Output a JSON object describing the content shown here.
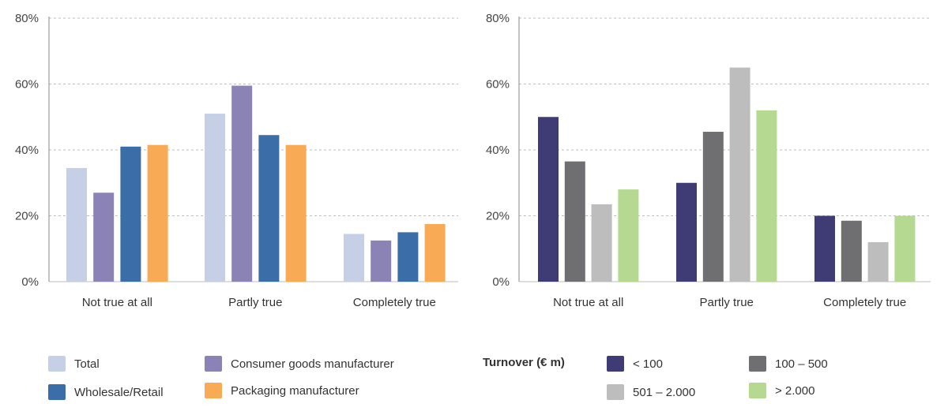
{
  "chart_data": [
    {
      "type": "bar",
      "categories": [
        "Not true at all",
        "Partly true",
        "Completely true"
      ],
      "ylim": [
        0,
        80
      ],
      "yticks": [
        "0%",
        "20%",
        "40%",
        "60%",
        "80%"
      ],
      "ytick_values": [
        0,
        20,
        40,
        60,
        80
      ],
      "grid": true,
      "legend_position": "bottom",
      "series": [
        {
          "name": "Total",
          "color": "#c5d0e7",
          "values": [
            34.5,
            51,
            14.5
          ]
        },
        {
          "name": "Consumer goods manufacturer",
          "color": "#8b82b6",
          "values": [
            27,
            59.5,
            12.5
          ]
        },
        {
          "name": "Wholesale/Retail",
          "color": "#3b6ea8",
          "values": [
            41,
            44.5,
            15
          ]
        },
        {
          "name": "Packaging manufacturer",
          "color": "#f8aa55",
          "values": [
            41.5,
            41.5,
            17.5
          ]
        }
      ]
    },
    {
      "type": "bar",
      "categories": [
        "Not true at all",
        "Partly true",
        "Completely true"
      ],
      "ylim": [
        0,
        80
      ],
      "yticks": [
        "0%",
        "20%",
        "40%",
        "60%",
        "80%"
      ],
      "ytick_values": [
        0,
        20,
        40,
        60,
        80
      ],
      "grid": true,
      "legend_position": "bottom",
      "legend_title": "Turnover (€ m)",
      "series": [
        {
          "name": "< 100",
          "color": "#3f3b74",
          "values": [
            50,
            30,
            20
          ]
        },
        {
          "name": "100 – 500",
          "color": "#6f6e71",
          "values": [
            36.5,
            45.5,
            18.5
          ]
        },
        {
          "name": "501 – 2.000",
          "color": "#bdbdbd",
          "values": [
            23.5,
            65,
            12
          ]
        },
        {
          "name": "> 2.000",
          "color": "#b5d991",
          "values": [
            28,
            52,
            20
          ]
        }
      ]
    }
  ]
}
